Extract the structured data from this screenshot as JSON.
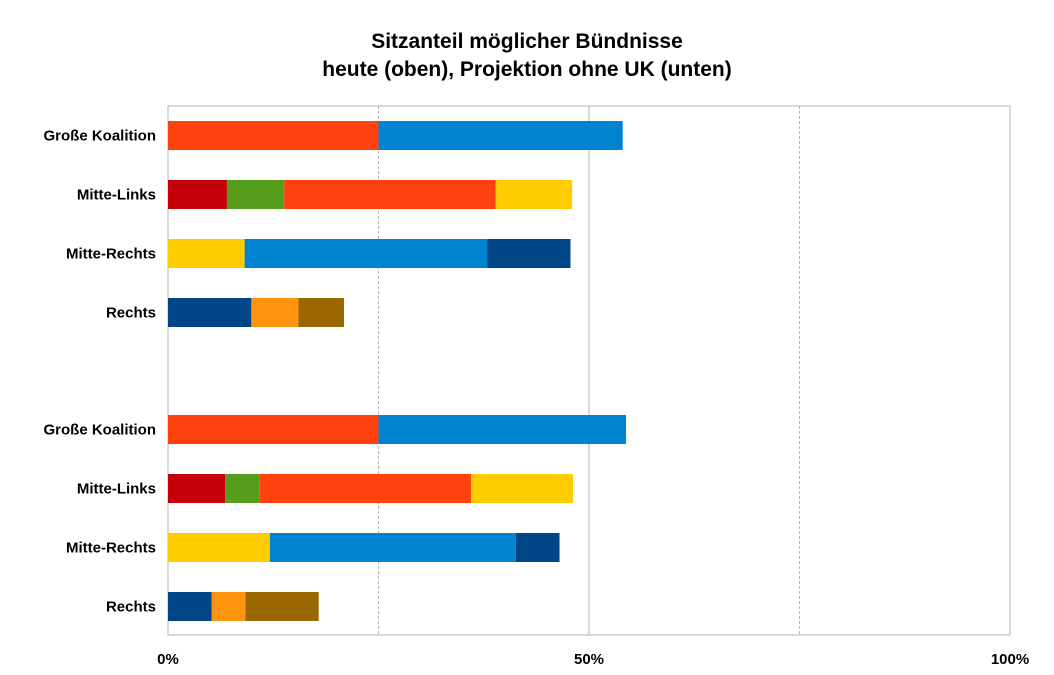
{
  "chart_data": {
    "type": "bar",
    "orientation": "horizontal",
    "stacked": true,
    "title": [
      "Sitzanteil möglicher Bündnisse",
      "heute (oben), Projektion ohne UK (unten)"
    ],
    "xlim": [
      0,
      100
    ],
    "x_ticks": [
      "0%",
      "50%",
      "100%"
    ],
    "gridlines": "vertical dashed at 25% and 75%, solid at 50%",
    "legend": "none",
    "groups": [
      {
        "name": "heute",
        "rows": [
          {
            "label": "Große Koalition",
            "segments": [
              {
                "value": 25.0,
                "color": "#ff420e"
              },
              {
                "value": 29.0,
                "color": "#0084d1"
              }
            ]
          },
          {
            "label": "Mitte-Links",
            "segments": [
              {
                "value": 7.0,
                "color": "#c5000b"
              },
              {
                "value": 6.8,
                "color": "#579d1c"
              },
              {
                "value": 25.1,
                "color": "#ff420e"
              },
              {
                "value": 9.1,
                "color": "#ffcc00"
              }
            ]
          },
          {
            "label": "Mitte-Rechts",
            "segments": [
              {
                "value": 9.1,
                "color": "#ffcc00"
              },
              {
                "value": 28.8,
                "color": "#0084d1"
              },
              {
                "value": 9.9,
                "color": "#004586"
              }
            ]
          },
          {
            "label": "Rechts",
            "segments": [
              {
                "value": 9.9,
                "color": "#004586"
              },
              {
                "value": 5.6,
                "color": "#ff950e"
              },
              {
                "value": 5.4,
                "color": "#996600"
              }
            ]
          }
        ]
      },
      {
        "name": "Projektion ohne UK",
        "rows": [
          {
            "label": "Große Koalition",
            "segments": [
              {
                "value": 25.0,
                "color": "#ff420e"
              },
              {
                "value": 29.4,
                "color": "#0084d1"
              }
            ]
          },
          {
            "label": "Mitte-Links",
            "segments": [
              {
                "value": 6.8,
                "color": "#c5000b"
              },
              {
                "value": 4.1,
                "color": "#579d1c"
              },
              {
                "value": 25.1,
                "color": "#ff420e"
              },
              {
                "value": 12.1,
                "color": "#ffcc00"
              }
            ]
          },
          {
            "label": "Mitte-Rechts",
            "segments": [
              {
                "value": 12.1,
                "color": "#ffcc00"
              },
              {
                "value": 29.2,
                "color": "#0084d1"
              },
              {
                "value": 5.2,
                "color": "#004586"
              }
            ]
          },
          {
            "label": "Rechts",
            "segments": [
              {
                "value": 5.2,
                "color": "#004586"
              },
              {
                "value": 4.0,
                "color": "#ff950e"
              },
              {
                "value": 8.7,
                "color": "#996600"
              }
            ]
          }
        ]
      }
    ]
  }
}
